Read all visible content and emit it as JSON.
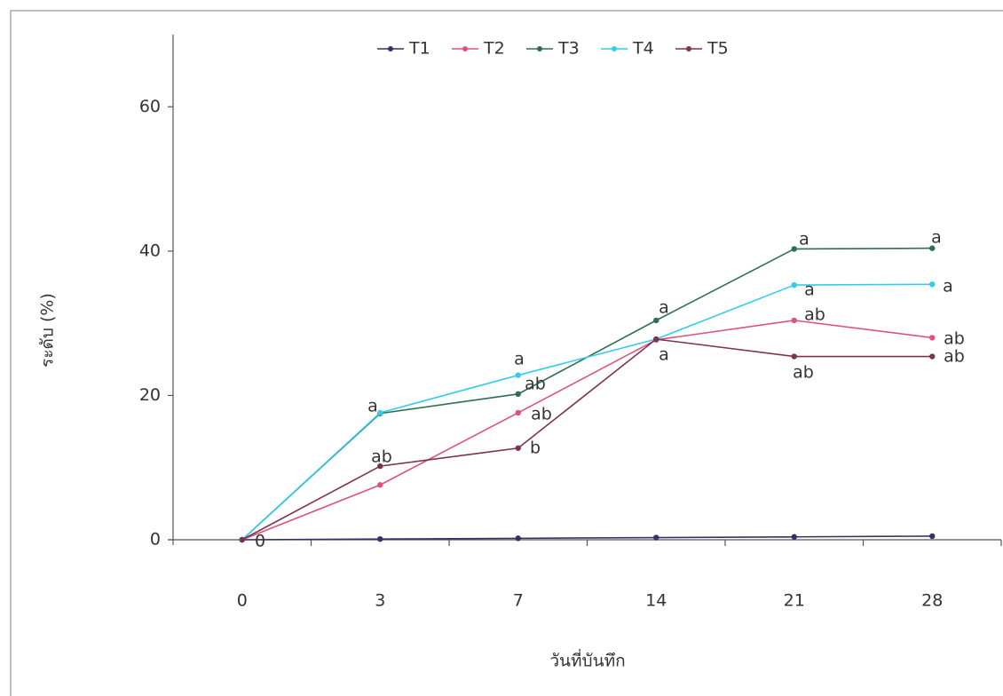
{
  "chart_data": {
    "type": "line",
    "y_label": "ระดับ (%)",
    "x_label": "วันที่บันทึก",
    "categories": [
      "0",
      "3",
      "7",
      "14",
      "21",
      "28"
    ],
    "series": [
      {
        "name": "T1",
        "color": "#333366",
        "values": [
          0,
          0.1,
          0.2,
          0.3,
          0.4,
          0.5
        ]
      },
      {
        "name": "T2",
        "color": "#e0507a",
        "values": [
          0,
          7.6,
          17.6,
          27.7,
          30.4,
          28
        ]
      },
      {
        "name": "T3",
        "color": "#2f6e4f",
        "values": [
          0,
          17.5,
          20.2,
          30.4,
          40.3,
          40.4
        ]
      },
      {
        "name": "T4",
        "color": "#33ccee",
        "values": [
          0,
          17.6,
          22.8,
          27.8,
          35.3,
          35.4
        ]
      },
      {
        "name": "T5",
        "color": "#7a3350",
        "values": [
          0,
          10.2,
          12.7,
          27.8,
          25.4,
          25.4
        ]
      }
    ],
    "annotations": [
      "a",
      "ab",
      "a",
      "ab",
      "ab",
      "b",
      "a",
      "a",
      "a",
      "a",
      "ab",
      "ab",
      "a",
      "a",
      "ab",
      "ab",
      "0"
    ],
    "ylim": [
      0,
      70
    ],
    "yticks": [
      0,
      20,
      40,
      60
    ],
    "legend": "top"
  }
}
